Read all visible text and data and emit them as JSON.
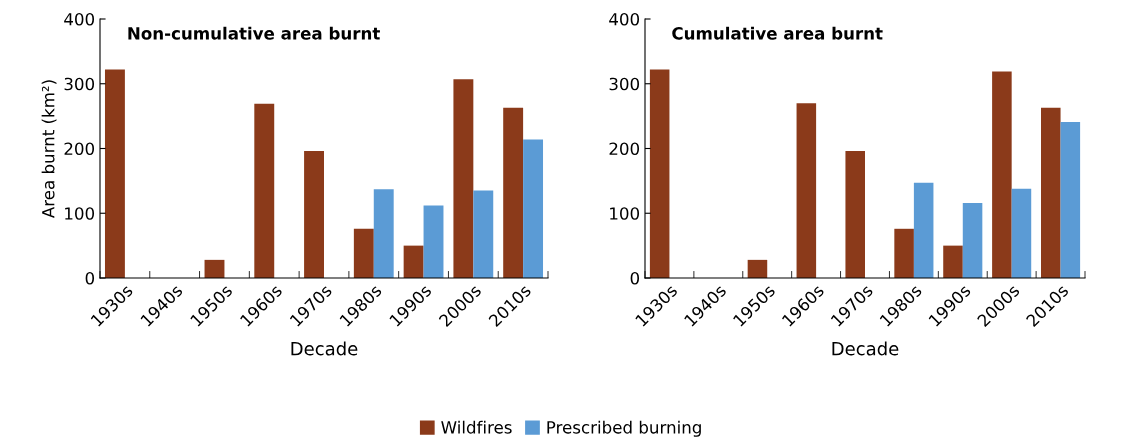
{
  "chart_data": [
    {
      "type": "bar",
      "title": "Non-cumulative area burnt",
      "xlabel": "Decade",
      "ylabel": "Area burnt (km²)",
      "categories": [
        "1930s",
        "1940s",
        "1950s",
        "1960s",
        "1970s",
        "1980s",
        "1990s",
        "2000s",
        "2010s"
      ],
      "series": [
        {
          "name": "Wildfires",
          "color": "#8b3a1a",
          "values": [
            322,
            0,
            28,
            269,
            196,
            76,
            50,
            307,
            263
          ]
        },
        {
          "name": "Prescribed burning",
          "color": "#5b9bd5",
          "values": [
            null,
            null,
            null,
            null,
            null,
            137,
            112,
            135,
            214
          ]
        }
      ],
      "ylim": [
        0,
        400
      ],
      "yticks": [
        0,
        100,
        200,
        300,
        400
      ],
      "grid": false,
      "legend": "bottom"
    },
    {
      "type": "bar",
      "title": "Cumulative area burnt",
      "xlabel": "Decade",
      "categories": [
        "1930s",
        "1940s",
        "1950s",
        "1960s",
        "1970s",
        "1980s",
        "1990s",
        "2000s",
        "2010s"
      ],
      "series": [
        {
          "color": "#8b3a1a",
          "values": [
            322,
            0,
            28,
            270,
            196,
            76,
            50,
            319,
            263
          ]
        },
        {
          "color": "#5b9bd5",
          "values": [
            null,
            null,
            null,
            null,
            null,
            147,
            116,
            138,
            241
          ]
        }
      ],
      "ylim": [
        0,
        400
      ],
      "yticks": [
        0,
        100,
        200,
        300,
        400
      ],
      "grid": false
    }
  ]
}
